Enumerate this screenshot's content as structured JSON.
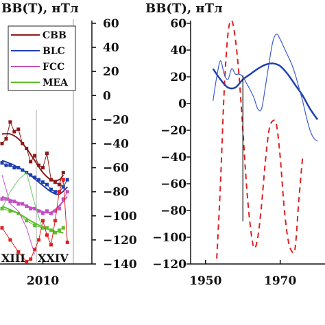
{
  "left_panel": {
    "title": "BB(T), нТл",
    "cycle_labels": [
      "XIII",
      "XXIV"
    ],
    "legend": [
      {
        "label": "CBB",
        "color": "#8b1a1a"
      },
      {
        "label": "BLC",
        "color": "#1f3fb0"
      },
      {
        "label": "FCC",
        "color": "#c24fc4"
      },
      {
        "label": "MEA",
        "color": "#5cbf2a"
      }
    ]
  },
  "right_panel": {
    "title": "BB(T), нТл"
  },
  "chart_data": [
    {
      "type": "line",
      "title": "BB(T), нТл",
      "xlabel": "",
      "ylabel": "BB(T), нТл",
      "xlim": [
        1999.5,
        2022
      ],
      "ylim": [
        -140,
        60
      ],
      "yticks": [
        60,
        40,
        20,
        0,
        -20,
        -40,
        -60,
        -80,
        -100,
        -120,
        -140
      ],
      "xticks": [
        2010
      ],
      "legend_position": "top-left",
      "grid": false,
      "series": [
        {
          "name": "CBB",
          "color": "#8b1a1a",
          "style": "markers",
          "x": [
            2000,
            2001,
            2002,
            2003,
            2004,
            2005,
            2006,
            2007,
            2008,
            2009,
            2010,
            2011,
            2012,
            2013,
            2014,
            2015
          ],
          "y": [
            -40,
            -36,
            -22,
            -30,
            -28,
            -40,
            -44,
            -55,
            -50,
            -58,
            -60,
            -48,
            -70,
            -72,
            -74,
            -64
          ]
        },
        {
          "name": "CBB",
          "color": "#8b1a1a",
          "style": "smooth",
          "x": [
            2000,
            2002,
            2004,
            2006,
            2008,
            2010,
            2012,
            2014,
            2015
          ],
          "y": [
            -32,
            -32,
            -36,
            -44,
            -54,
            -64,
            -70,
            -70,
            -66
          ]
        },
        {
          "name": "BLC",
          "color": "#1f3fb0",
          "style": "markers",
          "x": [
            2000,
            2001,
            2002,
            2003,
            2004,
            2005,
            2006,
            2007,
            2008,
            2009,
            2010,
            2011,
            2012,
            2013,
            2014,
            2015,
            2016
          ],
          "y": [
            -56,
            -58,
            -58,
            -60,
            -60,
            -62,
            -64,
            -66,
            -68,
            -70,
            -72,
            -74,
            -78,
            -80,
            -80,
            -76,
            -70
          ]
        },
        {
          "name": "BLC",
          "color": "#1f3fb0",
          "style": "smooth",
          "x": [
            2000,
            2003,
            2006,
            2009,
            2012,
            2014,
            2016
          ],
          "y": [
            -54,
            -58,
            -64,
            -72,
            -80,
            -82,
            -76
          ]
        },
        {
          "name": "FCC",
          "color": "#c24fc4",
          "style": "markers",
          "x": [
            2000,
            2001,
            2002,
            2003,
            2004,
            2005,
            2006,
            2007,
            2008,
            2009,
            2010,
            2011,
            2012,
            2013,
            2014,
            2015,
            2016
          ],
          "y": [
            -86,
            -86,
            -88,
            -88,
            -90,
            -90,
            -92,
            -94,
            -94,
            -96,
            -98,
            -96,
            -98,
            -96,
            -94,
            -86,
            -80
          ]
        },
        {
          "name": "FCC",
          "color": "#c24fc4",
          "style": "smooth",
          "x": [
            2000,
            2004,
            2008,
            2012,
            2016
          ],
          "y": [
            -84,
            -89,
            -94,
            -97,
            -84
          ]
        },
        {
          "name": "MEA",
          "color": "#5cbf2a",
          "style": "markers",
          "x": [
            2000,
            2002,
            2004,
            2006,
            2008,
            2010,
            2011,
            2012,
            2013,
            2014,
            2015
          ],
          "y": [
            -94,
            -96,
            -98,
            -104,
            -108,
            -110,
            -110,
            -112,
            -114,
            -112,
            -110
          ]
        },
        {
          "name": "MEA",
          "color": "#5cbf2a",
          "style": "smooth",
          "x": [
            2000,
            2004,
            2008,
            2012,
            2015
          ],
          "y": [
            -92,
            -98,
            -106,
            -112,
            -114
          ]
        },
        {
          "name": "",
          "color": "#e02020",
          "style": "markers-line",
          "x": [
            2000,
            2002,
            2004,
            2006,
            2007,
            2008,
            2009,
            2010,
            2011,
            2012,
            2013,
            2014,
            2015,
            2016
          ],
          "y": [
            -110,
            -120,
            -130,
            -138,
            -136,
            -128,
            -120,
            -104,
            -116,
            -124,
            -104,
            -80,
            -70,
            -122
          ]
        },
        {
          "name": "",
          "color": "#66cc66",
          "style": "line",
          "x": [
            2000,
            2002,
            2004,
            2006,
            2008,
            2010
          ],
          "y": [
            -94,
            -80,
            -70,
            -64,
            -90,
            -112
          ]
        },
        {
          "name": "",
          "color": "#d050d0",
          "style": "line",
          "x": [
            2000,
            2002,
            2004,
            2006,
            2008
          ],
          "y": [
            -66,
            -90,
            -96,
            -110,
            -132
          ]
        }
      ]
    },
    {
      "type": "line",
      "title": "BB(T), нТл",
      "xlabel": "",
      "ylabel": "BB(T), нТл",
      "xlim": [
        1946,
        1982
      ],
      "ylim": [
        -120,
        60
      ],
      "yticks": [
        60,
        40,
        20,
        0,
        -20,
        -40,
        -60,
        -80,
        -100,
        -120
      ],
      "xticks": [
        1950,
        1970
      ],
      "grid": false,
      "series": [
        {
          "name": "",
          "color": "#e02020",
          "style": "dashed",
          "x": [
            1953,
            1954,
            1955,
            1956,
            1957,
            1958,
            1959,
            1960,
            1961,
            1962,
            1963,
            1964,
            1965,
            1966,
            1967,
            1968,
            1969,
            1970,
            1971,
            1972,
            1973,
            1974,
            1975,
            1976
          ],
          "y": [
            -116,
            -60,
            10,
            52,
            62,
            48,
            20,
            -20,
            -62,
            -92,
            -108,
            -100,
            -76,
            -44,
            -20,
            -13,
            -16,
            -40,
            -76,
            -100,
            -110,
            -108,
            -72,
            -40
          ]
        },
        {
          "name": "",
          "color": "#1f3fb0",
          "style": "thick",
          "x": [
            1952,
            1954,
            1956,
            1958,
            1960,
            1962,
            1964,
            1966,
            1968,
            1970,
            1972,
            1974,
            1976,
            1978,
            1980
          ],
          "y": [
            26,
            18,
            12,
            12,
            18,
            22,
            26,
            29,
            30,
            28,
            22,
            14,
            6,
            -4,
            -12
          ]
        },
        {
          "name": "",
          "color": "#3a5bd0",
          "style": "thin",
          "x": [
            1952,
            1953,
            1954,
            1955,
            1956,
            1957,
            1958,
            1959,
            1960,
            1961,
            1962,
            1963,
            1964,
            1965,
            1966,
            1967,
            1968,
            1969,
            1970,
            1971,
            1972,
            1973,
            1974,
            1975,
            1976,
            1977,
            1978,
            1979,
            1980
          ],
          "y": [
            2,
            20,
            32,
            22,
            18,
            26,
            22,
            22,
            20,
            15,
            10,
            4,
            -4,
            -4,
            12,
            30,
            46,
            52,
            48,
            42,
            36,
            30,
            22,
            12,
            2,
            -10,
            -20,
            -26,
            -28
          ]
        },
        {
          "name": "",
          "color": "#111111",
          "style": "vline",
          "x": [
            1960,
            1960
          ],
          "y": [
            21,
            -88
          ]
        }
      ]
    }
  ]
}
